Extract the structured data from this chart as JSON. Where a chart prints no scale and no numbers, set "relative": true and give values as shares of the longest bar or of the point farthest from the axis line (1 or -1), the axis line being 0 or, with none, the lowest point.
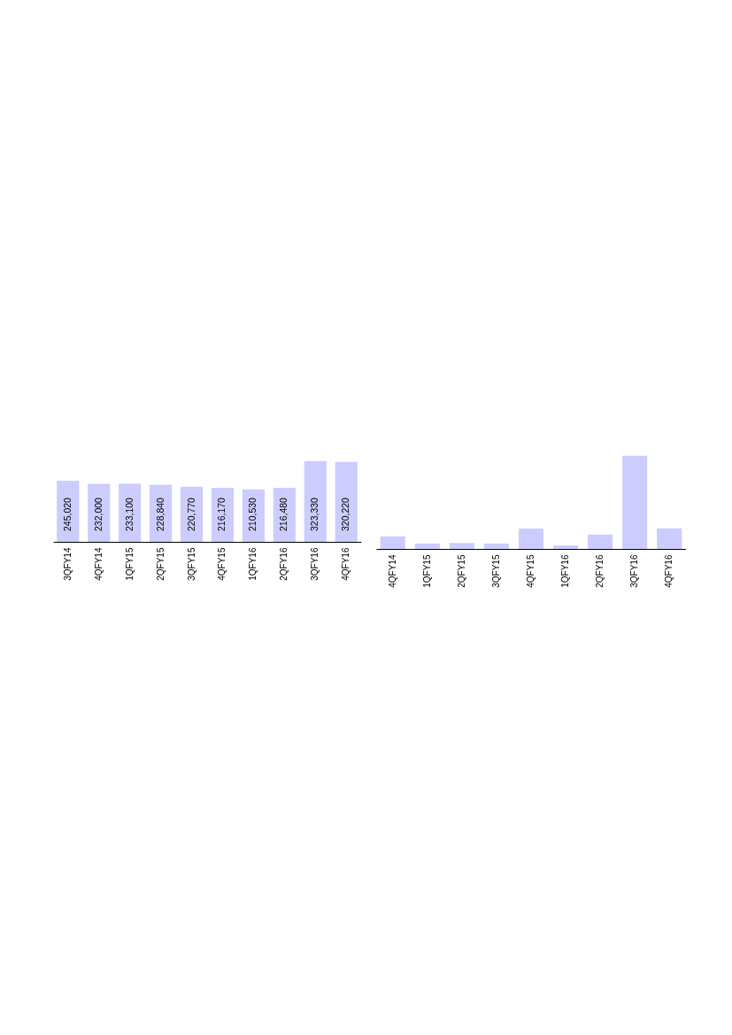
{
  "chart_data": [
    {
      "type": "bar",
      "categories": [
        "3QFY14",
        "4QFY14",
        "1QFY15",
        "2QFY15",
        "3QFY15",
        "4QFY15",
        "1QFY16",
        "2QFY16",
        "3QFY16",
        "4QFY16"
      ],
      "values": [
        245020,
        232000,
        233100,
        228840,
        220770,
        216170,
        210530,
        216480,
        323330,
        320220
      ],
      "value_labels": [
        "245,020",
        "232,000",
        "233,100",
        "228,840",
        "220,770",
        "216,170",
        "210,530",
        "216,480",
        "323,330",
        "320,220"
      ],
      "color": "#ccccff",
      "tick_labels": "x"
    },
    {
      "type": "bar",
      "categories": [
        "4QFY14",
        "1QFY15",
        "2QFY15",
        "3QFY15",
        "4QFY15",
        "1QFY16",
        "2QFY16",
        "3QFY16",
        "4QFY16"
      ],
      "values": [
        0.135,
        0.058,
        0.064,
        0.058,
        0.218,
        0.038,
        0.154,
        1,
        0.221
      ],
      "relative": true,
      "color": "#ccccff",
      "tick_labels": "x"
    }
  ]
}
